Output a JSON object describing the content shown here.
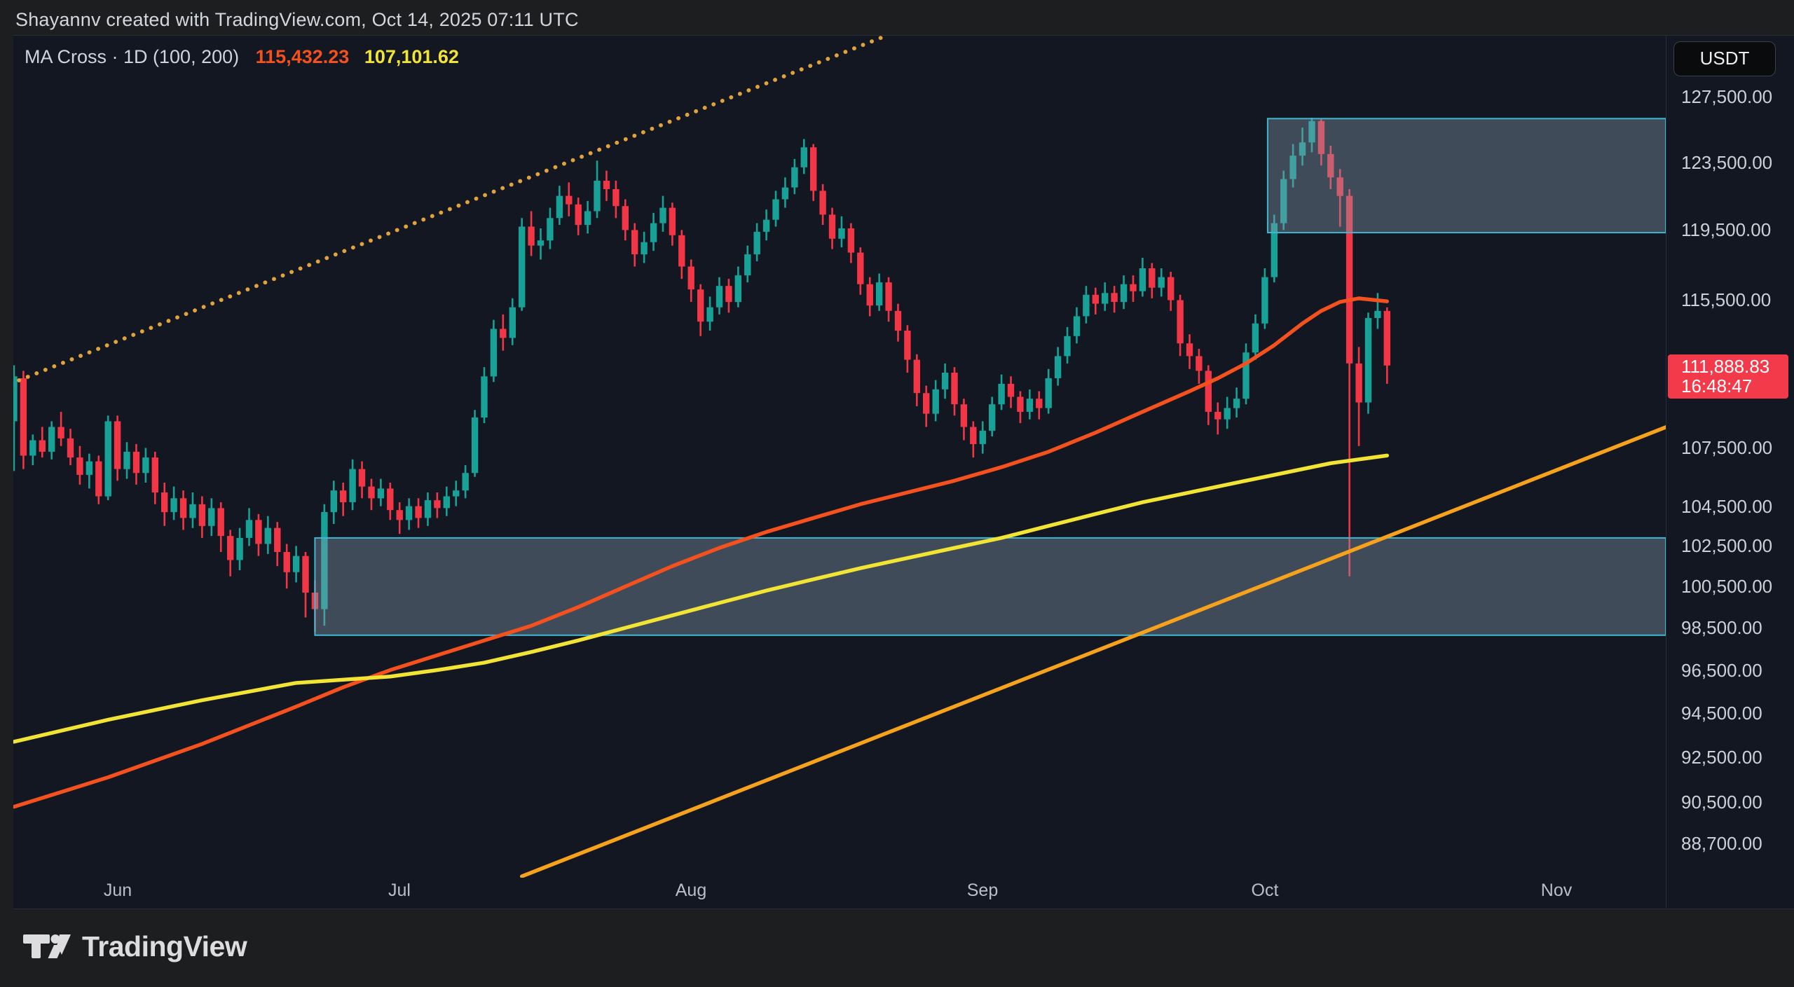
{
  "header": {
    "attribution": "Shayannv created with TradingView.com, Oct 14, 2025 07:11 UTC"
  },
  "legend": {
    "label": "MA Cross · 1D (100, 200)",
    "ma_fast_value": "115,432.23",
    "ma_slow_value": "107,101.62",
    "ma_fast_color": "#f4511e",
    "ma_slow_color": "#f2e435"
  },
  "price_axis": {
    "currency": "USDT",
    "last": {
      "price": 111888.83,
      "label": "111,888.83",
      "countdown": "16:48:47",
      "badge_color": "#f33a4b"
    }
  },
  "footer": {
    "brand": "TradingView"
  },
  "chart_data": {
    "type": "candlestick",
    "interval": "1D",
    "indicator": "MA Cross (100, 200)",
    "quote_currency": "USDT",
    "start_date": "2025-05-21",
    "scale": "log",
    "colors": {
      "up": "#17a197",
      "down": "#f23645"
    },
    "y_axis": {
      "ticks": [
        {
          "label": "127,500.00",
          "price": 127500
        },
        {
          "label": "123,500.00",
          "price": 123500
        },
        {
          "label": "119,500.00",
          "price": 119500
        },
        {
          "label": "115,500.00",
          "price": 115500
        },
        {
          "label": "107,500.00",
          "price": 107500
        },
        {
          "label": "104,500.00",
          "price": 104500
        },
        {
          "label": "102,500.00",
          "price": 102500
        },
        {
          "label": "100,500.00",
          "price": 100500
        },
        {
          "label": "98,500.00",
          "price": 98500
        },
        {
          "label": "96,500.00",
          "price": 96500
        },
        {
          "label": "94,500.00",
          "price": 94500
        },
        {
          "label": "92,500.00",
          "price": 92500
        },
        {
          "label": "90,500.00",
          "price": 90500
        },
        {
          "label": "88,700.00",
          "price": 88700
        }
      ]
    },
    "x_axis": {
      "months": [
        {
          "label": "Jun",
          "day": 11
        },
        {
          "label": "Jul",
          "day": 41
        },
        {
          "label": "Aug",
          "day": 72
        },
        {
          "label": "Sep",
          "day": 103
        },
        {
          "label": "Oct",
          "day": 133
        },
        {
          "label": "Nov",
          "day": 164
        }
      ]
    },
    "candles": [
      [
        108900,
        111900,
        106300,
        111300
      ],
      [
        111200,
        111600,
        106400,
        107100
      ],
      [
        107100,
        108200,
        106600,
        107900
      ],
      [
        107900,
        108600,
        107000,
        107300
      ],
      [
        107300,
        108900,
        106900,
        108600
      ],
      [
        108600,
        109400,
        107600,
        108000
      ],
      [
        108000,
        108500,
        106600,
        107000
      ],
      [
        107000,
        107600,
        105600,
        106100
      ],
      [
        106100,
        107200,
        105400,
        106800
      ],
      [
        106800,
        107100,
        104600,
        105000
      ],
      [
        105000,
        109200,
        104800,
        108900
      ],
      [
        108900,
        109200,
        105800,
        106400
      ],
      [
        106400,
        107800,
        105900,
        107300
      ],
      [
        107300,
        107700,
        105600,
        106200
      ],
      [
        106200,
        107500,
        105700,
        107000
      ],
      [
        107000,
        107300,
        104600,
        105200
      ],
      [
        105200,
        105700,
        103500,
        104200
      ],
      [
        104200,
        105500,
        103800,
        104900
      ],
      [
        104900,
        105300,
        103300,
        103900
      ],
      [
        103900,
        105200,
        103400,
        104600
      ],
      [
        104600,
        105000,
        102900,
        103500
      ],
      [
        103500,
        104900,
        103000,
        104400
      ],
      [
        104400,
        104700,
        102200,
        103000
      ],
      [
        103000,
        103300,
        101000,
        101800
      ],
      [
        101800,
        103400,
        101300,
        102900
      ],
      [
        102900,
        104400,
        102500,
        103800
      ],
      [
        103800,
        104100,
        102000,
        102600
      ],
      [
        102600,
        104000,
        102100,
        103400
      ],
      [
        103400,
        103700,
        101500,
        102200
      ],
      [
        102200,
        102600,
        100400,
        101200
      ],
      [
        101200,
        102500,
        100700,
        102000
      ],
      [
        102000,
        102200,
        99000,
        100200
      ],
      [
        100200,
        100800,
        98300,
        99400
      ],
      [
        99400,
        104600,
        98600,
        104200
      ],
      [
        104200,
        105800,
        103600,
        105300
      ],
      [
        105300,
        105700,
        104000,
        104700
      ],
      [
        104700,
        106900,
        104300,
        106400
      ],
      [
        106400,
        106800,
        104900,
        105500
      ],
      [
        105500,
        105900,
        104300,
        104900
      ],
      [
        104900,
        105900,
        104500,
        105400
      ],
      [
        105400,
        105700,
        103800,
        104300
      ],
      [
        104300,
        104700,
        103100,
        103800
      ],
      [
        103800,
        104900,
        103300,
        104500
      ],
      [
        104500,
        104900,
        103400,
        103900
      ],
      [
        103900,
        105200,
        103500,
        104800
      ],
      [
        104800,
        105200,
        103900,
        104400
      ],
      [
        104400,
        105500,
        104000,
        105000
      ],
      [
        105000,
        105800,
        104500,
        105300
      ],
      [
        105300,
        106600,
        104900,
        106200
      ],
      [
        106200,
        109500,
        106000,
        109100
      ],
      [
        109100,
        111800,
        108800,
        111300
      ],
      [
        111300,
        114400,
        111000,
        113900
      ],
      [
        113900,
        114700,
        112700,
        113400
      ],
      [
        113400,
        115600,
        113000,
        115100
      ],
      [
        115100,
        120200,
        114900,
        119700
      ],
      [
        119700,
        120600,
        118000,
        118600
      ],
      [
        118600,
        119600,
        117800,
        118900
      ],
      [
        118900,
        120800,
        118400,
        120200
      ],
      [
        120200,
        122100,
        119800,
        121500
      ],
      [
        121500,
        122300,
        120300,
        121000
      ],
      [
        121000,
        121400,
        119200,
        119800
      ],
      [
        119800,
        121200,
        119300,
        120600
      ],
      [
        120600,
        123600,
        120200,
        122400
      ],
      [
        122400,
        123000,
        121200,
        121900
      ],
      [
        121900,
        122400,
        120200,
        120900
      ],
      [
        120900,
        121300,
        118900,
        119500
      ],
      [
        119500,
        119900,
        117400,
        118100
      ],
      [
        118100,
        119400,
        117600,
        118800
      ],
      [
        118800,
        120500,
        118300,
        119900
      ],
      [
        119900,
        121500,
        119400,
        120800
      ],
      [
        120800,
        121100,
        118600,
        119200
      ],
      [
        119200,
        119500,
        116700,
        117400
      ],
      [
        117400,
        117800,
        115400,
        116100
      ],
      [
        116100,
        116400,
        113500,
        114300
      ],
      [
        114300,
        115700,
        113800,
        115100
      ],
      [
        115100,
        116800,
        114700,
        116300
      ],
      [
        116300,
        116700,
        114800,
        115400
      ],
      [
        115400,
        117400,
        115100,
        116900
      ],
      [
        116900,
        118600,
        116500,
        118100
      ],
      [
        118100,
        119900,
        117700,
        119400
      ],
      [
        119400,
        120700,
        118900,
        120100
      ],
      [
        120100,
        121800,
        119700,
        121300
      ],
      [
        121300,
        122600,
        120800,
        122000
      ],
      [
        122000,
        123700,
        121600,
        123200
      ],
      [
        123200,
        124900,
        122800,
        124400
      ],
      [
        124400,
        124600,
        121200,
        121800
      ],
      [
        121800,
        122200,
        119800,
        120400
      ],
      [
        120400,
        120800,
        118400,
        119000
      ],
      [
        119000,
        120300,
        118500,
        119600
      ],
      [
        119600,
        119900,
        117600,
        118200
      ],
      [
        118200,
        118500,
        115800,
        116400
      ],
      [
        116400,
        116800,
        114600,
        115200
      ],
      [
        115200,
        117000,
        114900,
        116500
      ],
      [
        116500,
        116800,
        114300,
        114900
      ],
      [
        114900,
        115300,
        113200,
        113800
      ],
      [
        113800,
        114100,
        111500,
        112200
      ],
      [
        112200,
        112500,
        109700,
        110400
      ],
      [
        110400,
        110800,
        108600,
        109300
      ],
      [
        109300,
        111100,
        108900,
        110600
      ],
      [
        110600,
        112000,
        110100,
        111500
      ],
      [
        111500,
        111800,
        109200,
        109800
      ],
      [
        109800,
        110100,
        107900,
        108600
      ],
      [
        108600,
        108900,
        107000,
        107700
      ],
      [
        107700,
        108900,
        107200,
        108400
      ],
      [
        108400,
        110200,
        108100,
        109800
      ],
      [
        109800,
        111400,
        109500,
        110900
      ],
      [
        110900,
        111300,
        109600,
        110200
      ],
      [
        110200,
        110500,
        108800,
        109400
      ],
      [
        109400,
        110600,
        109000,
        110100
      ],
      [
        110100,
        110500,
        109000,
        109600
      ],
      [
        109600,
        111700,
        109300,
        111200
      ],
      [
        111200,
        112900,
        110800,
        112400
      ],
      [
        112400,
        114000,
        112000,
        113500
      ],
      [
        113500,
        115100,
        113100,
        114600
      ],
      [
        114600,
        116300,
        114200,
        115800
      ],
      [
        115800,
        116200,
        114700,
        115300
      ],
      [
        115300,
        116500,
        114900,
        115900
      ],
      [
        115900,
        116300,
        114800,
        115400
      ],
      [
        115400,
        116900,
        115000,
        116400
      ],
      [
        116400,
        116900,
        115400,
        116000
      ],
      [
        116000,
        117900,
        115700,
        117300
      ],
      [
        117300,
        117600,
        115600,
        116200
      ],
      [
        116200,
        117300,
        115700,
        116800
      ],
      [
        116800,
        117100,
        114900,
        115500
      ],
      [
        115500,
        115800,
        112400,
        113100
      ],
      [
        113100,
        113600,
        111700,
        112400
      ],
      [
        112400,
        112800,
        110900,
        111600
      ],
      [
        111600,
        111900,
        108700,
        109400
      ],
      [
        109400,
        109900,
        108200,
        109000
      ],
      [
        109000,
        110200,
        108500,
        109600
      ],
      [
        109600,
        110700,
        109100,
        110100
      ],
      [
        110100,
        113100,
        109800,
        112600
      ],
      [
        112600,
        114700,
        112200,
        114200
      ],
      [
        114200,
        117300,
        113900,
        116800
      ],
      [
        116800,
        120400,
        116500,
        119900
      ],
      [
        119900,
        123000,
        119500,
        122500
      ],
      [
        122500,
        124600,
        122000,
        123900
      ],
      [
        123900,
        125600,
        123300,
        124700
      ],
      [
        124700,
        126200,
        124100,
        126000
      ],
      [
        126000,
        126100,
        123300,
        124000
      ],
      [
        124000,
        124500,
        121900,
        122600
      ],
      [
        122600,
        123100,
        119700,
        121500
      ],
      [
        121500,
        121900,
        101000,
        112000
      ],
      [
        112000,
        112900,
        107600,
        109900
      ],
      [
        109900,
        114800,
        109300,
        114500
      ],
      [
        114500,
        115900,
        113900,
        114900
      ],
      [
        114900,
        115100,
        110900,
        111888.83
      ]
    ],
    "moving_averages": [
      {
        "name": "MA 100",
        "color": "#f4511e",
        "last_value": 115432.23,
        "points": [
          [
            0,
            90300
          ],
          [
            10,
            91600
          ],
          [
            20,
            93100
          ],
          [
            30,
            94800
          ],
          [
            35,
            95700
          ],
          [
            40,
            96500
          ],
          [
            45,
            97200
          ],
          [
            50,
            97900
          ],
          [
            55,
            98600
          ],
          [
            60,
            99500
          ],
          [
            65,
            100500
          ],
          [
            70,
            101500
          ],
          [
            75,
            102400
          ],
          [
            80,
            103200
          ],
          [
            85,
            103900
          ],
          [
            90,
            104600
          ],
          [
            95,
            105200
          ],
          [
            100,
            105800
          ],
          [
            105,
            106500
          ],
          [
            110,
            107300
          ],
          [
            115,
            108300
          ],
          [
            120,
            109400
          ],
          [
            125,
            110500
          ],
          [
            128,
            111200
          ],
          [
            131,
            112000
          ],
          [
            134,
            113000
          ],
          [
            137,
            114200
          ],
          [
            139,
            114900
          ],
          [
            141,
            115400
          ],
          [
            143,
            115600
          ],
          [
            146,
            115432
          ]
        ]
      },
      {
        "name": "MA 200",
        "color": "#f2e435",
        "last_value": 107101.62,
        "points": [
          [
            0,
            93200
          ],
          [
            10,
            94200
          ],
          [
            20,
            95100
          ],
          [
            30,
            95900
          ],
          [
            35,
            96050
          ],
          [
            40,
            96200
          ],
          [
            45,
            96500
          ],
          [
            50,
            96850
          ],
          [
            55,
            97350
          ],
          [
            60,
            97900
          ],
          [
            65,
            98500
          ],
          [
            70,
            99100
          ],
          [
            75,
            99700
          ],
          [
            80,
            100300
          ],
          [
            85,
            100850
          ],
          [
            90,
            101400
          ],
          [
            95,
            101900
          ],
          [
            100,
            102400
          ],
          [
            105,
            102900
          ],
          [
            110,
            103500
          ],
          [
            115,
            104100
          ],
          [
            120,
            104700
          ],
          [
            125,
            105200
          ],
          [
            130,
            105700
          ],
          [
            135,
            106200
          ],
          [
            140,
            106700
          ],
          [
            143,
            106900
          ],
          [
            146,
            107102
          ]
        ]
      }
    ],
    "trendlines": [
      {
        "name": "dotted-resistance-trendline",
        "style": "dotted",
        "color": "#e2a23c",
        "from": [
          -0.4,
          110900
        ],
        "to": [
          92.6,
          131300
        ]
      },
      {
        "name": "ascending-support-trendline",
        "style": "solid",
        "color": "#f7a21c",
        "from": [
          54,
          87300
        ],
        "to": [
          175.7,
          108600
        ]
      }
    ],
    "zones": [
      {
        "name": "demand-zone",
        "from_day": 32,
        "to_day": 176,
        "top_price": 102900,
        "bottom_price": 98150
      },
      {
        "name": "supply-zone",
        "from_day": 133.3,
        "to_day": 176,
        "top_price": 126150,
        "bottom_price": 119350
      }
    ],
    "zone_style": {
      "fill": "rgba(140,160,180,0.38)",
      "stroke": "#3fb7d2"
    }
  }
}
